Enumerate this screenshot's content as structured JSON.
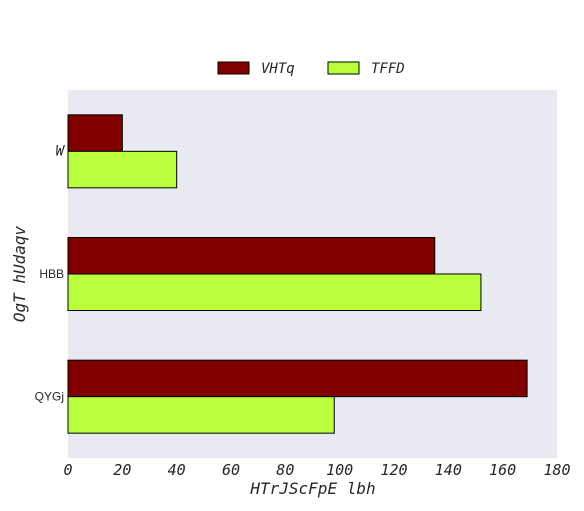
{
  "chart_data": {
    "type": "bar",
    "orientation": "horizontal",
    "title": "",
    "xlabel": "HTrJScFpE lbh",
    "ylabel": "OgT hUdaqv",
    "categories": [
      "W",
      "HBB",
      "QYGj"
    ],
    "series": [
      {
        "name": "VHTq",
        "values": [
          20,
          135,
          169
        ],
        "color": "#800000"
      },
      {
        "name": "TFFD",
        "values": [
          40,
          152,
          98
        ],
        "color": "#bbff3c"
      }
    ],
    "xlim": [
      0,
      180
    ],
    "xticks": [
      "0",
      "20",
      "40",
      "60",
      "80",
      "100",
      "120",
      "140",
      "160",
      "180"
    ],
    "grid": false,
    "legend_position": "top-center",
    "background_color": "#e9e9f2",
    "edge_color": "#000000"
  }
}
